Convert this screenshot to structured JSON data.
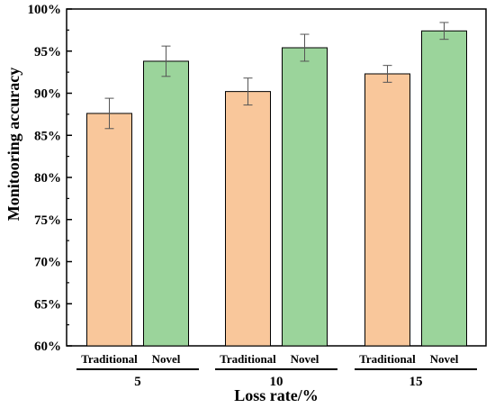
{
  "chart_data": {
    "type": "bar",
    "title": "",
    "xlabel": "Loss rate/%",
    "ylabel": "Monitooring accuracy",
    "ylim": [
      60,
      100
    ],
    "yticks": [
      60,
      65,
      70,
      75,
      80,
      85,
      90,
      95,
      100
    ],
    "ytick_labels": [
      "60%",
      "65%",
      "70%",
      "75%",
      "80%",
      "85%",
      "90%",
      "95%",
      "100%"
    ],
    "groups": [
      "5",
      "10",
      "15"
    ],
    "grid": false,
    "legend": "none",
    "error_bars": true,
    "series": [
      {
        "name": "Traditional",
        "color": "#F9C79B",
        "values": [
          87.6,
          90.2,
          92.3
        ],
        "errors": [
          1.8,
          1.6,
          1.0
        ]
      },
      {
        "name": "Novel",
        "color": "#9BD49B",
        "values": [
          93.8,
          95.4,
          97.4
        ],
        "errors": [
          1.8,
          1.6,
          1.0
        ]
      }
    ]
  }
}
